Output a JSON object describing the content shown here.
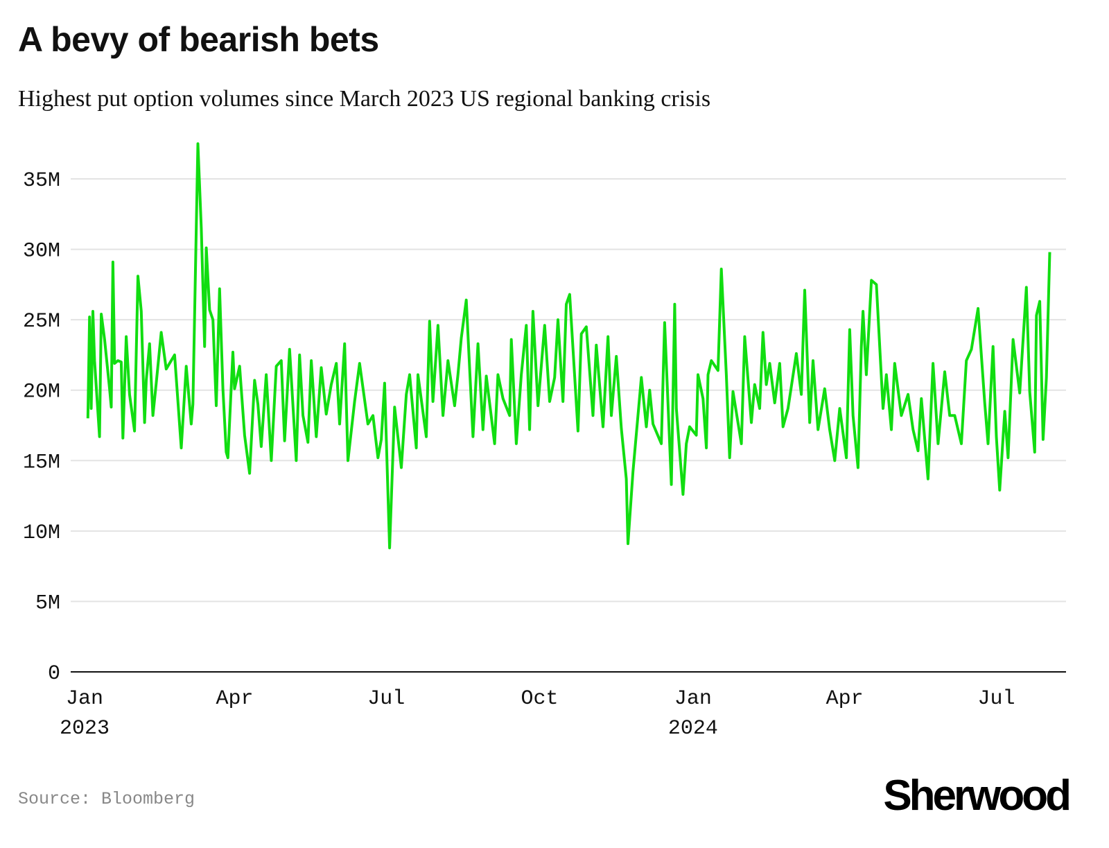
{
  "title": "A bevy of bearish bets",
  "subtitle": "Highest put option volumes since March 2023 US regional banking crisis",
  "source": "Source: Bloomberg",
  "logo": "Sherwood",
  "chart_data": {
    "type": "line",
    "title": "A bevy of bearish bets",
    "subtitle": "Highest put option volumes since March 2023 US regional banking crisis",
    "xlabel": "",
    "ylabel": "",
    "line_color": "#11dd11",
    "grid": true,
    "ylim": [
      0,
      37.5
    ],
    "y_unit": "M",
    "y_ticks": [
      {
        "value": 0,
        "label": "0"
      },
      {
        "value": 5,
        "label": "5M"
      },
      {
        "value": 10,
        "label": "10M"
      },
      {
        "value": 15,
        "label": "15M"
      },
      {
        "value": 20,
        "label": "20M"
      },
      {
        "value": 25,
        "label": "25M"
      },
      {
        "value": 30,
        "label": "30M"
      },
      {
        "value": 35,
        "label": "35M"
      }
    ],
    "x_ticks": [
      {
        "date": "2023-01-01",
        "label": "Jan",
        "year": "2023"
      },
      {
        "date": "2023-04-01",
        "label": "Apr",
        "year": ""
      },
      {
        "date": "2023-07-01",
        "label": "Jul",
        "year": ""
      },
      {
        "date": "2023-10-01",
        "label": "Oct",
        "year": ""
      },
      {
        "date": "2024-01-01",
        "label": "Jan",
        "year": "2024"
      },
      {
        "date": "2024-04-01",
        "label": "Apr",
        "year": ""
      },
      {
        "date": "2024-07-01",
        "label": "Jul",
        "year": ""
      }
    ],
    "points": [
      [
        "2023-01-03",
        18.0
      ],
      [
        "2023-01-04",
        25.2
      ],
      [
        "2023-01-05",
        18.7
      ],
      [
        "2023-01-06",
        25.6
      ],
      [
        "2023-01-07",
        22.1
      ],
      [
        "2023-01-10",
        16.7
      ],
      [
        "2023-01-11",
        25.4
      ],
      [
        "2023-01-13",
        23.6
      ],
      [
        "2023-01-16",
        20.1
      ],
      [
        "2023-01-17",
        18.8
      ],
      [
        "2023-01-18",
        29.1
      ],
      [
        "2023-01-19",
        21.9
      ],
      [
        "2023-01-21",
        22.1
      ],
      [
        "2023-01-23",
        22.0
      ],
      [
        "2023-01-24",
        16.6
      ],
      [
        "2023-01-26",
        23.8
      ],
      [
        "2023-01-28",
        19.7
      ],
      [
        "2023-01-31",
        17.1
      ],
      [
        "2023-02-02",
        28.1
      ],
      [
        "2023-02-04",
        25.6
      ],
      [
        "2023-02-06",
        17.7
      ],
      [
        "2023-02-07",
        20.7
      ],
      [
        "2023-02-09",
        23.3
      ],
      [
        "2023-02-11",
        18.2
      ],
      [
        "2023-02-13",
        20.5
      ],
      [
        "2023-02-16",
        24.1
      ],
      [
        "2023-02-19",
        21.5
      ],
      [
        "2023-02-24",
        22.5
      ],
      [
        "2023-02-28",
        15.9
      ],
      [
        "2023-03-03",
        21.7
      ],
      [
        "2023-03-06",
        17.6
      ],
      [
        "2023-03-07",
        19.0
      ],
      [
        "2023-03-10",
        37.5
      ],
      [
        "2023-03-12",
        31.5
      ],
      [
        "2023-03-14",
        23.1
      ],
      [
        "2023-03-15",
        30.1
      ],
      [
        "2023-03-17",
        25.7
      ],
      [
        "2023-03-19",
        25.0
      ],
      [
        "2023-03-21",
        18.9
      ],
      [
        "2023-03-23",
        27.2
      ],
      [
        "2023-03-25",
        20.1
      ],
      [
        "2023-03-27",
        15.6
      ],
      [
        "2023-03-28",
        15.2
      ],
      [
        "2023-03-31",
        22.7
      ],
      [
        "2023-04-01",
        20.1
      ],
      [
        "2023-04-04",
        21.7
      ],
      [
        "2023-04-07",
        16.8
      ],
      [
        "2023-04-10",
        14.1
      ],
      [
        "2023-04-13",
        20.7
      ],
      [
        "2023-04-15",
        19.0
      ],
      [
        "2023-04-17",
        16.0
      ],
      [
        "2023-04-20",
        21.1
      ],
      [
        "2023-04-23",
        15.0
      ],
      [
        "2023-04-26",
        21.7
      ],
      [
        "2023-04-29",
        22.1
      ],
      [
        "2023-05-01",
        16.4
      ],
      [
        "2023-05-04",
        22.9
      ],
      [
        "2023-05-08",
        15.0
      ],
      [
        "2023-05-10",
        22.5
      ],
      [
        "2023-05-12",
        18.2
      ],
      [
        "2023-05-15",
        16.3
      ],
      [
        "2023-05-17",
        22.1
      ],
      [
        "2023-05-20",
        16.7
      ],
      [
        "2023-05-23",
        21.6
      ],
      [
        "2023-05-26",
        18.3
      ],
      [
        "2023-05-29",
        20.4
      ],
      [
        "2023-06-01",
        21.9
      ],
      [
        "2023-06-03",
        17.6
      ],
      [
        "2023-06-06",
        23.3
      ],
      [
        "2023-06-08",
        15.0
      ],
      [
        "2023-06-12",
        19.2
      ],
      [
        "2023-06-15",
        21.9
      ],
      [
        "2023-06-20",
        17.6
      ],
      [
        "2023-06-23",
        18.2
      ],
      [
        "2023-06-26",
        15.2
      ],
      [
        "2023-06-28",
        16.5
      ],
      [
        "2023-06-30",
        20.5
      ],
      [
        "2023-07-03",
        8.8
      ],
      [
        "2023-07-06",
        18.8
      ],
      [
        "2023-07-10",
        14.5
      ],
      [
        "2023-07-13",
        19.7
      ],
      [
        "2023-07-15",
        21.1
      ],
      [
        "2023-07-19",
        15.9
      ],
      [
        "2023-07-20",
        21.1
      ],
      [
        "2023-07-25",
        16.7
      ],
      [
        "2023-07-27",
        24.9
      ],
      [
        "2023-07-29",
        19.2
      ],
      [
        "2023-08-01",
        24.6
      ],
      [
        "2023-08-04",
        18.2
      ],
      [
        "2023-08-07",
        22.1
      ],
      [
        "2023-08-11",
        18.9
      ],
      [
        "2023-08-13",
        21.1
      ],
      [
        "2023-08-15",
        23.7
      ],
      [
        "2023-08-18",
        26.4
      ],
      [
        "2023-08-22",
        16.7
      ],
      [
        "2023-08-25",
        23.3
      ],
      [
        "2023-08-28",
        17.2
      ],
      [
        "2023-08-30",
        21.0
      ],
      [
        "2023-09-04",
        16.2
      ],
      [
        "2023-09-06",
        21.1
      ],
      [
        "2023-09-09",
        19.4
      ],
      [
        "2023-09-13",
        18.2
      ],
      [
        "2023-09-14",
        23.6
      ],
      [
        "2023-09-17",
        16.2
      ],
      [
        "2023-09-20",
        21.1
      ],
      [
        "2023-09-23",
        24.6
      ],
      [
        "2023-09-25",
        17.2
      ],
      [
        "2023-09-27",
        25.6
      ],
      [
        "2023-09-30",
        18.9
      ],
      [
        "2023-10-04",
        24.6
      ],
      [
        "2023-10-07",
        19.2
      ],
      [
        "2023-10-10",
        20.9
      ],
      [
        "2023-10-12",
        25.0
      ],
      [
        "2023-10-15",
        19.2
      ],
      [
        "2023-10-17",
        26.1
      ],
      [
        "2023-10-19",
        26.8
      ],
      [
        "2023-10-24",
        17.1
      ],
      [
        "2023-10-26",
        24.0
      ],
      [
        "2023-10-29",
        24.5
      ],
      [
        "2023-11-02",
        18.2
      ],
      [
        "2023-11-04",
        23.2
      ],
      [
        "2023-11-08",
        17.4
      ],
      [
        "2023-11-11",
        23.8
      ],
      [
        "2023-11-13",
        18.2
      ],
      [
        "2023-11-16",
        22.4
      ],
      [
        "2023-11-19",
        17.3
      ],
      [
        "2023-11-22",
        13.7
      ],
      [
        "2023-11-23",
        9.1
      ],
      [
        "2023-11-26",
        14.2
      ],
      [
        "2023-12-01",
        20.9
      ],
      [
        "2023-12-04",
        17.4
      ],
      [
        "2023-12-06",
        20.0
      ],
      [
        "2023-12-08",
        17.6
      ],
      [
        "2023-12-13",
        16.2
      ],
      [
        "2023-12-15",
        24.8
      ],
      [
        "2023-12-19",
        13.3
      ],
      [
        "2023-12-21",
        26.1
      ],
      [
        "2023-12-22",
        18.7
      ],
      [
        "2023-12-26",
        12.6
      ],
      [
        "2023-12-28",
        16.2
      ],
      [
        "2023-12-30",
        17.4
      ],
      [
        "2024-01-03",
        16.8
      ],
      [
        "2024-01-04",
        21.1
      ],
      [
        "2024-01-07",
        19.4
      ],
      [
        "2024-01-09",
        15.9
      ],
      [
        "2024-01-10",
        21.1
      ],
      [
        "2024-01-12",
        22.1
      ],
      [
        "2024-01-16",
        21.4
      ],
      [
        "2024-01-18",
        28.6
      ],
      [
        "2024-01-21",
        21.1
      ],
      [
        "2024-01-23",
        15.2
      ],
      [
        "2024-01-25",
        19.9
      ],
      [
        "2024-01-30",
        16.2
      ],
      [
        "2024-02-01",
        23.8
      ],
      [
        "2024-02-05",
        17.7
      ],
      [
        "2024-02-07",
        20.4
      ],
      [
        "2024-02-10",
        18.7
      ],
      [
        "2024-02-12",
        24.1
      ],
      [
        "2024-02-14",
        20.4
      ],
      [
        "2024-02-16",
        21.9
      ],
      [
        "2024-02-19",
        19.1
      ],
      [
        "2024-02-22",
        21.9
      ],
      [
        "2024-02-24",
        17.4
      ],
      [
        "2024-02-27",
        18.7
      ],
      [
        "2024-03-03",
        22.6
      ],
      [
        "2024-03-06",
        19.7
      ],
      [
        "2024-03-08",
        27.1
      ],
      [
        "2024-03-11",
        17.7
      ],
      [
        "2024-03-13",
        22.1
      ],
      [
        "2024-03-16",
        17.2
      ],
      [
        "2024-03-20",
        20.1
      ],
      [
        "2024-03-23",
        17.2
      ],
      [
        "2024-03-26",
        15.0
      ],
      [
        "2024-03-29",
        18.7
      ],
      [
        "2024-04-02",
        15.2
      ],
      [
        "2024-04-04",
        24.3
      ],
      [
        "2024-04-06",
        18.2
      ],
      [
        "2024-04-09",
        14.5
      ],
      [
        "2024-04-11",
        23.1
      ],
      [
        "2024-04-12",
        25.6
      ],
      [
        "2024-04-14",
        21.1
      ],
      [
        "2024-04-17",
        27.8
      ],
      [
        "2024-04-20",
        27.5
      ],
      [
        "2024-04-24",
        18.7
      ],
      [
        "2024-04-26",
        21.1
      ],
      [
        "2024-04-29",
        17.2
      ],
      [
        "2024-05-01",
        21.9
      ],
      [
        "2024-05-05",
        18.2
      ],
      [
        "2024-05-09",
        19.7
      ],
      [
        "2024-05-12",
        17.2
      ],
      [
        "2024-05-15",
        15.7
      ],
      [
        "2024-05-17",
        19.4
      ],
      [
        "2024-05-21",
        13.7
      ],
      [
        "2024-05-24",
        21.9
      ],
      [
        "2024-05-27",
        16.2
      ],
      [
        "2024-05-31",
        21.3
      ],
      [
        "2024-06-03",
        18.2
      ],
      [
        "2024-06-06",
        18.2
      ],
      [
        "2024-06-10",
        16.2
      ],
      [
        "2024-06-13",
        22.1
      ],
      [
        "2024-06-16",
        22.9
      ],
      [
        "2024-06-20",
        25.8
      ],
      [
        "2024-06-24",
        19.1
      ],
      [
        "2024-06-26",
        16.2
      ],
      [
        "2024-06-29",
        23.1
      ],
      [
        "2024-07-01",
        16.7
      ],
      [
        "2024-07-03",
        12.9
      ],
      [
        "2024-07-06",
        18.5
      ],
      [
        "2024-07-08",
        15.2
      ],
      [
        "2024-07-11",
        23.6
      ],
      [
        "2024-07-15",
        19.8
      ],
      [
        "2024-07-19",
        27.3
      ],
      [
        "2024-07-21",
        19.9
      ],
      [
        "2024-07-24",
        15.6
      ],
      [
        "2024-07-25",
        25.3
      ],
      [
        "2024-07-27",
        26.3
      ],
      [
        "2024-07-29",
        16.5
      ],
      [
        "2024-07-31",
        20.9
      ],
      [
        "2024-08-02",
        29.8
      ]
    ]
  }
}
